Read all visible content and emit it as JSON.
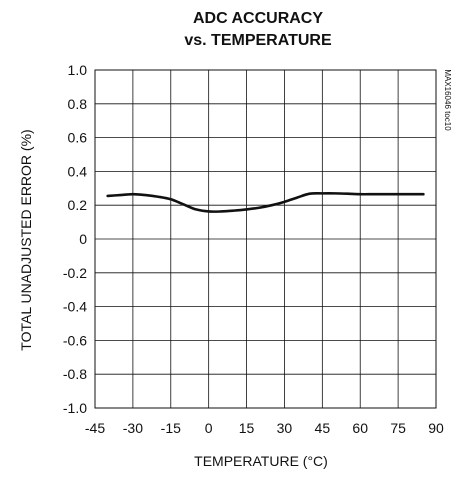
{
  "chart_data": {
    "type": "line",
    "title_lines": [
      "ADC ACCURACY",
      "vs. TEMPERATURE"
    ],
    "xlabel": "TEMPERATURE (°C)",
    "ylabel": "TOTAL UNADJUSTED ERROR (%)",
    "side_note": "MAX16046 toc10",
    "xlim": [
      -45,
      90
    ],
    "ylim": [
      -1.0,
      1.0
    ],
    "x_ticks": [
      -45,
      -30,
      -15,
      0,
      15,
      30,
      45,
      60,
      75,
      90
    ],
    "x_tick_labels": [
      "-45",
      "-30",
      "-15",
      "0",
      "15",
      "30",
      "45",
      "60",
      "75",
      "90"
    ],
    "y_ticks": [
      1.0,
      0.8,
      0.6,
      0.4,
      0.2,
      0,
      -0.2,
      -0.4,
      -0.6,
      -0.8,
      -1.0
    ],
    "y_tick_labels": [
      "1.0",
      "0.8",
      "0.6",
      "0.4",
      "0.2",
      "0",
      "-0.2",
      "-0.4",
      "-0.6",
      "-0.8",
      "-1.0"
    ],
    "grid": true,
    "series": [
      {
        "color": "#111111",
        "x": [
          -40,
          -35,
          -30,
          -25,
          -20,
          -15,
          -10,
          -5,
          0,
          5,
          10,
          15,
          20,
          25,
          30,
          35,
          40,
          45,
          50,
          55,
          60,
          65,
          70,
          75,
          80,
          85
        ],
        "y": [
          0.255,
          0.26,
          0.265,
          0.26,
          0.25,
          0.235,
          0.205,
          0.175,
          0.163,
          0.163,
          0.168,
          0.175,
          0.185,
          0.2,
          0.22,
          0.245,
          0.268,
          0.27,
          0.27,
          0.268,
          0.265,
          0.265,
          0.265,
          0.265,
          0.265,
          0.265
        ]
      }
    ]
  }
}
